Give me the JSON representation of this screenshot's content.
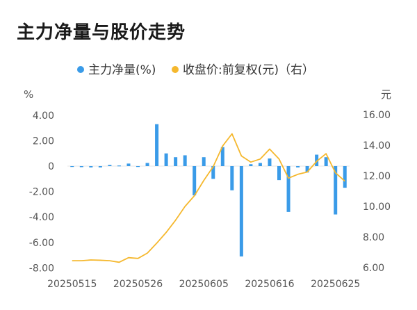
{
  "title": "主力净量与股价走势",
  "chart_data": {
    "type": "bar+line",
    "legend": [
      {
        "label": "主力净量(%)",
        "color": "#3a9be8"
      },
      {
        "label": "收盘价:前复权(元)（右）",
        "color": "#f5b82e"
      }
    ],
    "left_unit": "%",
    "right_unit": "元",
    "y_left": {
      "min": -8,
      "max": 5,
      "ticks": [
        "4.00",
        "2.00",
        "0",
        "-2.00",
        "-4.00",
        "-6.00",
        "-8.00"
      ],
      "tick_values": [
        4,
        2,
        0,
        -2,
        -4,
        -6,
        -8
      ]
    },
    "y_right": {
      "min": 6,
      "max": 18,
      "ticks": [
        "16.00",
        "14.00",
        "12.00",
        "10.00",
        "8.00",
        "6.00"
      ],
      "tick_values": [
        16,
        14,
        12,
        10,
        8,
        6
      ]
    },
    "x_labels": [
      {
        "label": "20250515",
        "index": 0
      },
      {
        "label": "20250526",
        "index": 7
      },
      {
        "label": "20250605",
        "index": 14
      },
      {
        "label": "20250616",
        "index": 21
      },
      {
        "label": "20250625",
        "index": 28
      }
    ],
    "series": [
      {
        "name": "主力净量(%)",
        "kind": "bar",
        "values": [
          -0.05,
          -0.08,
          -0.1,
          -0.1,
          0.1,
          0.05,
          0.2,
          0.0,
          0.25,
          3.3,
          1.0,
          0.7,
          0.85,
          -2.3,
          0.7,
          -1.0,
          1.5,
          -1.9,
          -7.1,
          0.15,
          0.25,
          0.6,
          -1.1,
          -3.6,
          -0.1,
          -0.5,
          0.9,
          0.7,
          -3.8,
          -1.7
        ]
      },
      {
        "name": "收盘价:前复权(元)（右）",
        "kind": "line",
        "values": [
          6.45,
          6.45,
          6.5,
          6.48,
          6.45,
          6.35,
          6.65,
          6.6,
          6.95,
          7.6,
          8.3,
          9.1,
          10.0,
          10.7,
          11.7,
          12.6,
          13.95,
          14.75,
          13.3,
          12.9,
          13.1,
          13.75,
          13.1,
          11.85,
          12.1,
          12.25,
          12.95,
          13.45,
          12.2,
          11.65
        ]
      }
    ]
  }
}
